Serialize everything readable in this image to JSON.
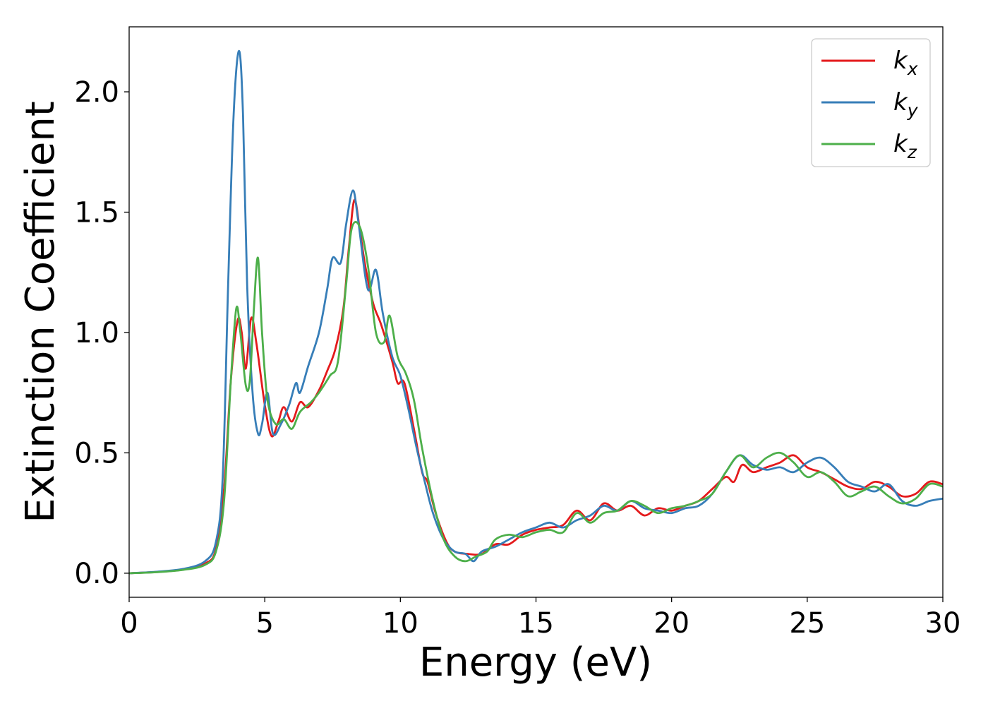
{
  "chart_data": {
    "type": "line",
    "xlabel": "Energy (eV)",
    "ylabel": "Extinction Coefficient",
    "xlim": [
      0,
      30
    ],
    "ylim": [
      -0.1,
      2.27
    ],
    "x_ticks": [
      0,
      5,
      10,
      15,
      20,
      25,
      30
    ],
    "x_tick_labels": [
      "0",
      "5",
      "10",
      "15",
      "20",
      "25",
      "30"
    ],
    "y_ticks": [
      0.0,
      0.5,
      1.0,
      1.5,
      2.0
    ],
    "y_tick_labels": [
      "0.0",
      "0.5",
      "1.0",
      "1.5",
      "2.0"
    ],
    "grid": false,
    "legend_position": "top-right",
    "series": [
      {
        "name": "k_x",
        "label_main": "k",
        "label_sub": "x",
        "color": "#e41a1c",
        "points": [
          [
            0,
            0
          ],
          [
            1,
            0.005
          ],
          [
            2,
            0.015
          ],
          [
            2.8,
            0.04
          ],
          [
            3.2,
            0.1
          ],
          [
            3.5,
            0.35
          ],
          [
            3.75,
            0.8
          ],
          [
            4.0,
            1.05
          ],
          [
            4.15,
            1.0
          ],
          [
            4.3,
            0.85
          ],
          [
            4.5,
            1.06
          ],
          [
            4.7,
            0.95
          ],
          [
            5.0,
            0.7
          ],
          [
            5.25,
            0.57
          ],
          [
            5.5,
            0.63
          ],
          [
            5.7,
            0.69
          ],
          [
            6.0,
            0.63
          ],
          [
            6.3,
            0.71
          ],
          [
            6.6,
            0.69
          ],
          [
            7.0,
            0.76
          ],
          [
            7.3,
            0.84
          ],
          [
            7.6,
            0.93
          ],
          [
            7.9,
            1.1
          ],
          [
            8.1,
            1.35
          ],
          [
            8.3,
            1.55
          ],
          [
            8.5,
            1.43
          ],
          [
            8.7,
            1.28
          ],
          [
            9.0,
            1.12
          ],
          [
            9.3,
            1.03
          ],
          [
            9.7,
            0.88
          ],
          [
            9.9,
            0.79
          ],
          [
            10.15,
            0.79
          ],
          [
            10.5,
            0.6
          ],
          [
            10.8,
            0.42
          ],
          [
            11.0,
            0.38
          ],
          [
            11.3,
            0.25
          ],
          [
            11.7,
            0.13
          ],
          [
            12.0,
            0.09
          ],
          [
            12.5,
            0.08
          ],
          [
            13.0,
            0.08
          ],
          [
            13.5,
            0.12
          ],
          [
            14.0,
            0.12
          ],
          [
            14.5,
            0.16
          ],
          [
            15.0,
            0.18
          ],
          [
            15.5,
            0.19
          ],
          [
            16.0,
            0.2
          ],
          [
            16.5,
            0.26
          ],
          [
            17.0,
            0.22
          ],
          [
            17.5,
            0.29
          ],
          [
            18.0,
            0.26
          ],
          [
            18.5,
            0.28
          ],
          [
            19.0,
            0.24
          ],
          [
            19.5,
            0.27
          ],
          [
            20.0,
            0.26
          ],
          [
            20.5,
            0.28
          ],
          [
            21.0,
            0.3
          ],
          [
            21.5,
            0.35
          ],
          [
            22.0,
            0.4
          ],
          [
            22.3,
            0.38
          ],
          [
            22.6,
            0.45
          ],
          [
            23.0,
            0.42
          ],
          [
            23.5,
            0.44
          ],
          [
            24.0,
            0.46
          ],
          [
            24.5,
            0.49
          ],
          [
            25.0,
            0.44
          ],
          [
            25.5,
            0.42
          ],
          [
            26.0,
            0.39
          ],
          [
            26.5,
            0.36
          ],
          [
            27.0,
            0.35
          ],
          [
            27.5,
            0.38
          ],
          [
            28.0,
            0.36
          ],
          [
            28.5,
            0.32
          ],
          [
            29.0,
            0.33
          ],
          [
            29.5,
            0.38
          ],
          [
            30.0,
            0.37
          ]
        ]
      },
      {
        "name": "k_y",
        "label_main": "k",
        "label_sub": "y",
        "color": "#377eb8",
        "points": [
          [
            0,
            0
          ],
          [
            1,
            0.006
          ],
          [
            2,
            0.018
          ],
          [
            2.8,
            0.05
          ],
          [
            3.2,
            0.13
          ],
          [
            3.45,
            0.4
          ],
          [
            3.65,
            1.2
          ],
          [
            3.85,
            1.9
          ],
          [
            4.05,
            2.17
          ],
          [
            4.2,
            1.9
          ],
          [
            4.35,
            1.2
          ],
          [
            4.55,
            0.75
          ],
          [
            4.75,
            0.58
          ],
          [
            4.9,
            0.62
          ],
          [
            5.1,
            0.75
          ],
          [
            5.3,
            0.58
          ],
          [
            5.6,
            0.62
          ],
          [
            5.9,
            0.7
          ],
          [
            6.15,
            0.79
          ],
          [
            6.3,
            0.75
          ],
          [
            6.6,
            0.86
          ],
          [
            7.0,
            1.0
          ],
          [
            7.3,
            1.18
          ],
          [
            7.5,
            1.31
          ],
          [
            7.8,
            1.29
          ],
          [
            8.0,
            1.45
          ],
          [
            8.25,
            1.59
          ],
          [
            8.45,
            1.46
          ],
          [
            8.8,
            1.18
          ],
          [
            9.1,
            1.26
          ],
          [
            9.35,
            1.08
          ],
          [
            9.7,
            0.9
          ],
          [
            10.0,
            0.82
          ],
          [
            10.3,
            0.68
          ],
          [
            10.6,
            0.52
          ],
          [
            10.9,
            0.38
          ],
          [
            11.2,
            0.25
          ],
          [
            11.6,
            0.14
          ],
          [
            12.0,
            0.09
          ],
          [
            12.4,
            0.08
          ],
          [
            12.7,
            0.05
          ],
          [
            13.0,
            0.09
          ],
          [
            13.5,
            0.11
          ],
          [
            14.0,
            0.14
          ],
          [
            14.5,
            0.17
          ],
          [
            15.0,
            0.19
          ],
          [
            15.5,
            0.21
          ],
          [
            16.0,
            0.19
          ],
          [
            16.5,
            0.22
          ],
          [
            17.0,
            0.24
          ],
          [
            17.5,
            0.28
          ],
          [
            18.0,
            0.26
          ],
          [
            18.5,
            0.3
          ],
          [
            19.0,
            0.27
          ],
          [
            19.5,
            0.26
          ],
          [
            20.0,
            0.25
          ],
          [
            20.5,
            0.27
          ],
          [
            21.0,
            0.28
          ],
          [
            21.5,
            0.33
          ],
          [
            22.0,
            0.42
          ],
          [
            22.5,
            0.49
          ],
          [
            23.0,
            0.45
          ],
          [
            23.5,
            0.43
          ],
          [
            24.0,
            0.44
          ],
          [
            24.5,
            0.42
          ],
          [
            25.0,
            0.46
          ],
          [
            25.5,
            0.48
          ],
          [
            26.0,
            0.44
          ],
          [
            26.5,
            0.38
          ],
          [
            27.0,
            0.36
          ],
          [
            27.5,
            0.34
          ],
          [
            28.0,
            0.37
          ],
          [
            28.5,
            0.3
          ],
          [
            29.0,
            0.28
          ],
          [
            29.5,
            0.3
          ],
          [
            30.0,
            0.31
          ]
        ]
      },
      {
        "name": "k_z",
        "label_main": "k",
        "label_sub": "z",
        "color": "#4daf4a",
        "points": [
          [
            0,
            0
          ],
          [
            1,
            0.004
          ],
          [
            2,
            0.014
          ],
          [
            2.8,
            0.035
          ],
          [
            3.2,
            0.09
          ],
          [
            3.5,
            0.3
          ],
          [
            3.75,
            0.8
          ],
          [
            3.95,
            1.1
          ],
          [
            4.1,
            1.0
          ],
          [
            4.3,
            0.78
          ],
          [
            4.45,
            0.8
          ],
          [
            4.6,
            1.1
          ],
          [
            4.75,
            1.31
          ],
          [
            4.9,
            1.0
          ],
          [
            5.1,
            0.72
          ],
          [
            5.4,
            0.62
          ],
          [
            5.7,
            0.64
          ],
          [
            6.0,
            0.6
          ],
          [
            6.3,
            0.67
          ],
          [
            6.7,
            0.71
          ],
          [
            7.0,
            0.75
          ],
          [
            7.4,
            0.82
          ],
          [
            7.7,
            0.88
          ],
          [
            8.0,
            1.2
          ],
          [
            8.2,
            1.43
          ],
          [
            8.5,
            1.44
          ],
          [
            8.8,
            1.28
          ],
          [
            9.1,
            1.0
          ],
          [
            9.4,
            0.96
          ],
          [
            9.6,
            1.07
          ],
          [
            9.9,
            0.9
          ],
          [
            10.2,
            0.83
          ],
          [
            10.5,
            0.72
          ],
          [
            10.8,
            0.52
          ],
          [
            11.2,
            0.3
          ],
          [
            11.6,
            0.14
          ],
          [
            12.0,
            0.07
          ],
          [
            12.4,
            0.05
          ],
          [
            12.8,
            0.07
          ],
          [
            13.2,
            0.09
          ],
          [
            13.5,
            0.14
          ],
          [
            14.0,
            0.16
          ],
          [
            14.5,
            0.15
          ],
          [
            15.0,
            0.17
          ],
          [
            15.5,
            0.18
          ],
          [
            16.0,
            0.17
          ],
          [
            16.5,
            0.25
          ],
          [
            17.0,
            0.21
          ],
          [
            17.5,
            0.25
          ],
          [
            18.0,
            0.26
          ],
          [
            18.5,
            0.3
          ],
          [
            19.0,
            0.28
          ],
          [
            19.5,
            0.25
          ],
          [
            20.0,
            0.27
          ],
          [
            20.5,
            0.28
          ],
          [
            21.0,
            0.3
          ],
          [
            21.5,
            0.33
          ],
          [
            22.0,
            0.42
          ],
          [
            22.5,
            0.49
          ],
          [
            23.0,
            0.44
          ],
          [
            23.5,
            0.48
          ],
          [
            24.0,
            0.5
          ],
          [
            24.5,
            0.46
          ],
          [
            25.0,
            0.4
          ],
          [
            25.5,
            0.42
          ],
          [
            26.0,
            0.38
          ],
          [
            26.5,
            0.32
          ],
          [
            27.0,
            0.34
          ],
          [
            27.5,
            0.36
          ],
          [
            28.0,
            0.32
          ],
          [
            28.5,
            0.29
          ],
          [
            29.0,
            0.31
          ],
          [
            29.5,
            0.37
          ],
          [
            30.0,
            0.36
          ]
        ]
      }
    ]
  }
}
